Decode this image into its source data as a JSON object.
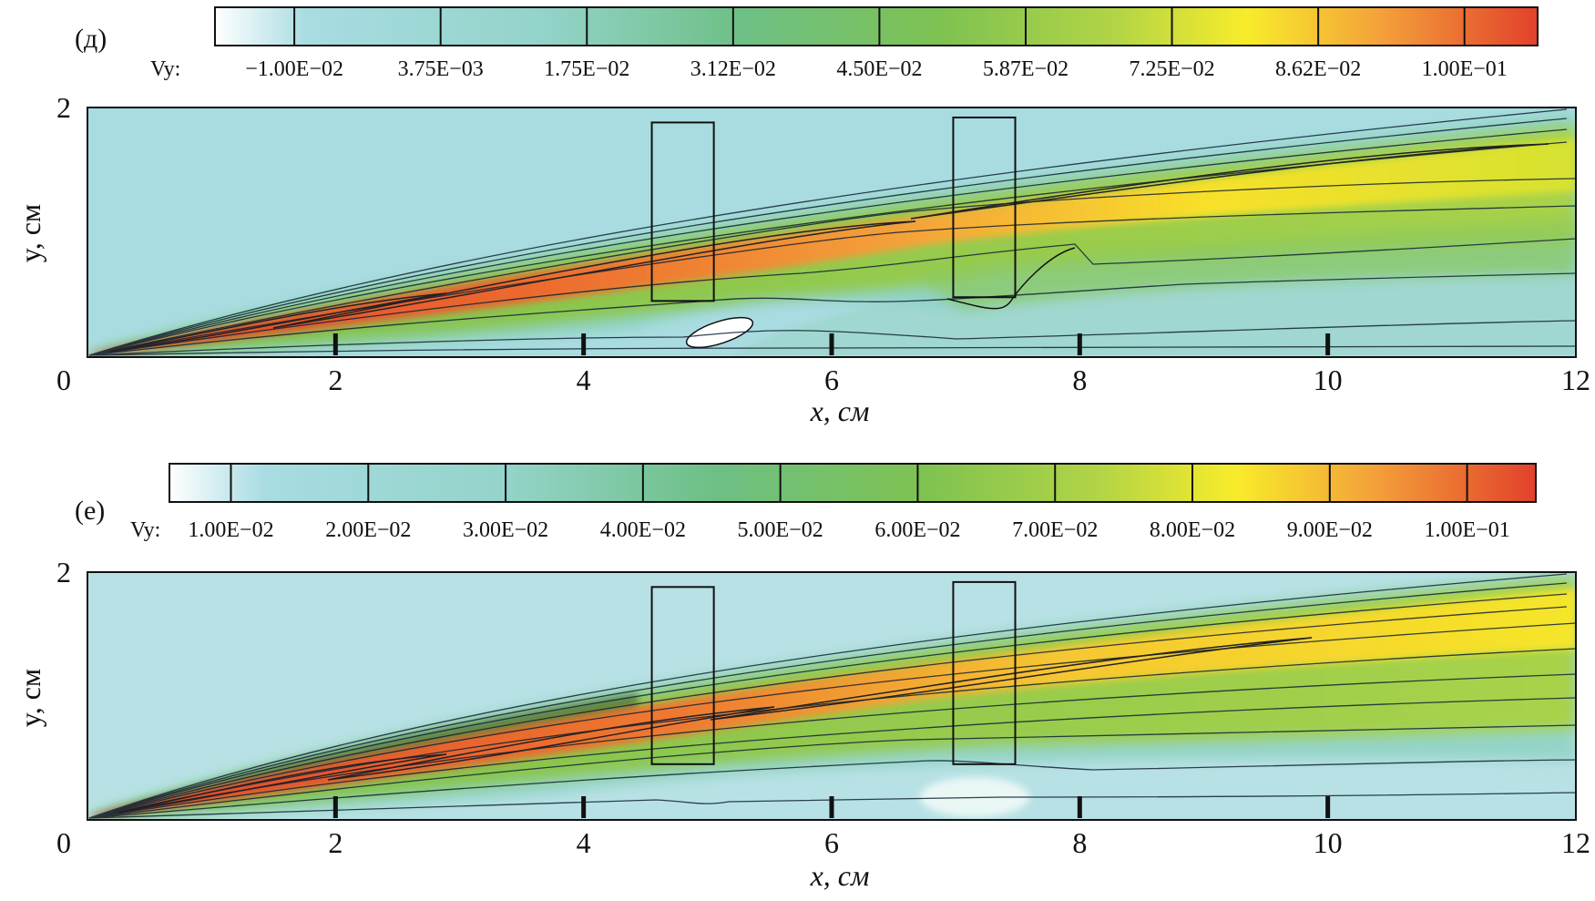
{
  "panels": [
    {
      "panel_label": "(д)",
      "colorbar": {
        "variable": "Vy:",
        "tick_labels": [
          "−1.00E−02",
          "3.75E−03",
          "1.75E−02",
          "3.12E−02",
          "4.50E−02",
          "5.87E−02",
          "7.25E−02",
          "8.62E−02",
          "1.00E−01"
        ]
      }
    },
    {
      "panel_label": "(е)",
      "colorbar": {
        "variable": "Vy:",
        "tick_labels": [
          "1.00E−02",
          "2.00E−02",
          "3.00E−02",
          "4.00E−02",
          "5.00E−02",
          "6.00E−02",
          "7.00E−02",
          "8.00E−02",
          "9.00E−02",
          "1.00E−01"
        ]
      }
    }
  ],
  "chart_data": [
    {
      "type": "heatmap",
      "title": "",
      "xlabel": "x, см",
      "ylabel": "y, см",
      "xlim": [
        0,
        12
      ],
      "ylim": [
        0,
        2
      ],
      "xticks": [
        "0",
        "2",
        "4",
        "6",
        "8",
        "10",
        "12"
      ],
      "yticks": [
        "2"
      ],
      "colorbar_levels": [
        -0.01,
        0.00375,
        0.0175,
        0.0312,
        0.045,
        0.0587,
        0.0725,
        0.0862,
        0.1
      ],
      "colormap": [
        "#ffffff",
        "#a7dbe0",
        "#90d2c8",
        "#6cbf85",
        "#7cc150",
        "#a8d24a",
        "#f7ec2a",
        "#f3a53a",
        "#e3472b"
      ],
      "obstacles": [
        {
          "name": "block-1",
          "x": [
            4.55,
            5.05
          ],
          "y": [
            0.45,
            1.88
          ]
        },
        {
          "name": "block-2",
          "x": [
            6.98,
            7.48
          ],
          "y": [
            0.48,
            1.92
          ]
        }
      ],
      "wall_ticks_x": [
        2,
        4,
        6,
        8,
        10
      ]
    },
    {
      "type": "heatmap",
      "title": "",
      "xlabel": "x, см",
      "ylabel": "y, см",
      "xlim": [
        0,
        12
      ],
      "ylim": [
        0,
        2
      ],
      "xticks": [
        "0",
        "2",
        "4",
        "6",
        "8",
        "10",
        "12"
      ],
      "yticks": [
        "2"
      ],
      "colorbar_levels": [
        0.01,
        0.02,
        0.03,
        0.04,
        0.05,
        0.06,
        0.07,
        0.08,
        0.09,
        0.1
      ],
      "colormap": [
        "#ffffff",
        "#a7dbe0",
        "#90d2c8",
        "#6cbf85",
        "#7cc150",
        "#a8d24a",
        "#f7ec2a",
        "#f3a53a",
        "#e3472b"
      ],
      "obstacles": [
        {
          "name": "block-1",
          "x": [
            4.55,
            5.05
          ],
          "y": [
            0.45,
            1.88
          ]
        },
        {
          "name": "block-2",
          "x": [
            6.98,
            7.48
          ],
          "y": [
            0.45,
            1.92
          ]
        }
      ],
      "wall_ticks_x": [
        2,
        4,
        6,
        8,
        10
      ]
    }
  ]
}
